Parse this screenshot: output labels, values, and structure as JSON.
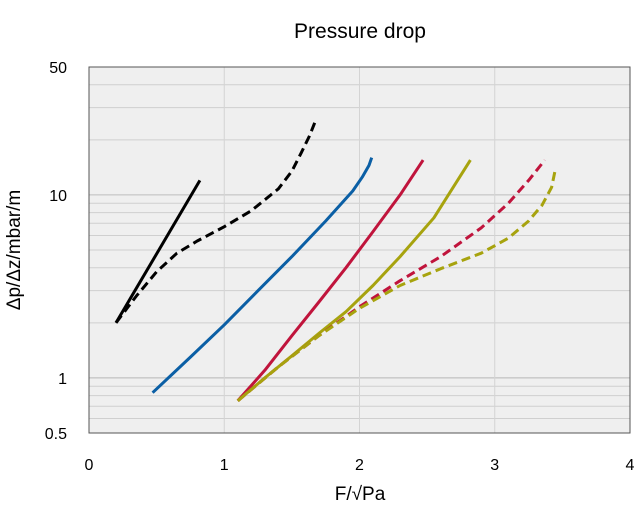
{
  "chart_data": {
    "type": "line",
    "title": "Pressure drop",
    "xlabel": "F/√Pa",
    "ylabel": "Δp/Δz/mbar/m",
    "xlim": [
      0,
      4
    ],
    "ylim": [
      0.5,
      50
    ],
    "yscale": "log",
    "x_ticks": [
      0,
      1,
      2,
      3,
      4
    ],
    "x_tick_labels": [
      "0",
      "1",
      "2",
      "3",
      "4"
    ],
    "y_ticks": [
      0.5,
      1,
      10,
      50
    ],
    "y_tick_labels": [
      "0.5",
      "1",
      "10",
      "50"
    ],
    "grid": true,
    "plot_background": "#efefef",
    "series": [
      {
        "color": "#000000",
        "dash": "solid",
        "x": [
          0.2,
          0.82
        ],
        "y": [
          2.0,
          12.0
        ]
      },
      {
        "color": "#000000",
        "dash": "dashed",
        "x": [
          0.2,
          0.35,
          0.5,
          0.65,
          0.8,
          1.0,
          1.2,
          1.4,
          1.5,
          1.57,
          1.63,
          1.68
        ],
        "y": [
          2.0,
          2.8,
          3.8,
          4.8,
          5.6,
          6.7,
          8.2,
          10.8,
          13.5,
          17.0,
          21.0,
          26.0
        ]
      },
      {
        "color": "#0b5fa5",
        "dash": "solid",
        "x": [
          0.47,
          0.75,
          1.0,
          1.25,
          1.5,
          1.75,
          1.95,
          2.02,
          2.07,
          2.09
        ],
        "y": [
          0.83,
          1.3,
          1.95,
          3.0,
          4.6,
          7.2,
          10.5,
          12.5,
          14.5,
          16.0
        ]
      },
      {
        "color": "#c0143c",
        "dash": "solid",
        "x": [
          1.1,
          1.3,
          1.5,
          1.7,
          1.9,
          2.1,
          2.3,
          2.47
        ],
        "y": [
          0.75,
          1.1,
          1.7,
          2.6,
          4.0,
          6.3,
          10.0,
          15.5
        ]
      },
      {
        "color": "#a7a30e",
        "dash": "solid",
        "x": [
          1.1,
          1.3,
          1.5,
          1.7,
          1.9,
          2.1,
          2.3,
          2.55,
          2.82
        ],
        "y": [
          0.75,
          1.0,
          1.32,
          1.75,
          2.3,
          3.2,
          4.6,
          7.5,
          15.5
        ]
      },
      {
        "color": "#c0143c",
        "dash": "dashed",
        "x": [
          1.1,
          1.4,
          1.7,
          2.0,
          2.3,
          2.6,
          2.9,
          3.1,
          3.25,
          3.37
        ],
        "y": [
          0.75,
          1.15,
          1.7,
          2.45,
          3.4,
          4.6,
          6.6,
          9.0,
          12.0,
          15.5
        ]
      },
      {
        "color": "#a7a30e",
        "dash": "dashed",
        "x": [
          1.1,
          1.4,
          1.7,
          2.0,
          2.3,
          2.6,
          2.9,
          3.1,
          3.25,
          3.35,
          3.42,
          3.45
        ],
        "y": [
          0.75,
          1.15,
          1.7,
          2.4,
          3.2,
          3.95,
          4.8,
          5.8,
          7.2,
          8.8,
          11.0,
          14.0
        ]
      }
    ]
  }
}
